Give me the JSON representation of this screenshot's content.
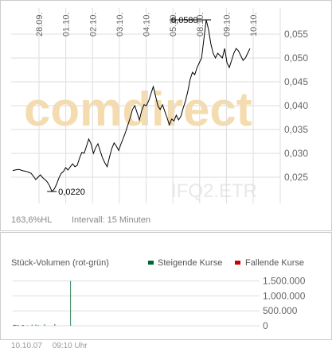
{
  "watermark": {
    "brand": "comdirect",
    "ticker": "IFQ2.ETR"
  },
  "footer_stats": {
    "percent": "163,6",
    "percent_unit": "%HL",
    "interval": "Intervall: 15 Minuten"
  },
  "footer": {
    "date": "10.10.07",
    "time": "09:10 Uhr"
  },
  "colors": {
    "rising": "#006633",
    "falling": "#cc0000",
    "grid": "#dddddd",
    "line": "#000000"
  },
  "chart_data": [
    {
      "type": "line",
      "title": "",
      "x_tick_labels": [
        "28.09.",
        "01.10.",
        "02.10.",
        "03.10.",
        "04.10.",
        "05.10.",
        "08.10.",
        "09.10.",
        "10.10."
      ],
      "y_ticks": [
        "0,025",
        "0,030",
        "0,035",
        "0,040",
        "0,045",
        "0,050",
        "0,055"
      ],
      "ylim": [
        0.0195,
        0.0605
      ],
      "grid": true,
      "annotations": [
        {
          "label": "0,0580",
          "value": 0.058,
          "kind": "high"
        },
        {
          "label": "0,0220",
          "value": 0.022,
          "kind": "low"
        }
      ],
      "series": [
        {
          "values": [
            0.0264,
            0.0265,
            0.0266,
            0.0266,
            0.0264,
            0.0263,
            0.0262,
            0.026,
            0.0258,
            0.0252,
            0.0245,
            0.025,
            0.0255,
            0.0249,
            0.0245,
            0.024,
            0.0232,
            0.022,
            0.0225,
            0.0235,
            0.0248,
            0.0258,
            0.0262,
            0.027,
            0.0265,
            0.0272,
            0.0278,
            0.0272,
            0.0275,
            0.029,
            0.0302,
            0.03,
            0.0315,
            0.033,
            0.032,
            0.03,
            0.0312,
            0.032,
            0.0305,
            0.029,
            0.028,
            0.0272,
            0.0292,
            0.031,
            0.0322,
            0.0315,
            0.0306,
            0.032,
            0.0332,
            0.0345,
            0.036,
            0.0375,
            0.0392,
            0.04,
            0.0385,
            0.037,
            0.039,
            0.0402,
            0.04,
            0.041,
            0.0425,
            0.044,
            0.042,
            0.04,
            0.0392,
            0.0402,
            0.0388,
            0.0375,
            0.036,
            0.0372,
            0.0368,
            0.038,
            0.037,
            0.0378,
            0.0395,
            0.041,
            0.043,
            0.0455,
            0.047,
            0.0465,
            0.048,
            0.049,
            0.05,
            0.054,
            0.058,
            0.056,
            0.053,
            0.051,
            0.05,
            0.051,
            0.0505,
            0.05,
            0.052,
            0.049,
            0.048,
            0.0495,
            0.051,
            0.052,
            0.0515,
            0.0505,
            0.0495,
            0.05,
            0.051,
            0.052
          ]
        }
      ]
    },
    {
      "type": "bar",
      "title": "Stück-Volumen (rot-grün)",
      "legend": [
        "Steigende Kurse",
        "Fallende Kurse"
      ],
      "legend_position": "top-right",
      "y_ticks": [
        "0",
        "500.000",
        "1.000.000",
        "1.500.000"
      ],
      "ylim": [
        0,
        1650000
      ],
      "values": [
        0,
        0,
        0,
        0,
        0,
        0,
        0,
        0,
        0,
        0,
        0,
        0,
        0,
        0,
        0,
        0,
        0,
        0,
        0,
        0,
        0,
        0,
        0,
        0,
        0,
        0,
        0,
        0,
        0,
        0,
        0,
        0,
        0,
        0,
        0,
        0,
        0,
        0,
        0,
        0,
        0,
        0,
        0,
        0,
        0,
        0,
        0,
        0,
        0,
        0,
        0,
        0,
        0,
        0,
        0,
        0,
        0,
        0,
        0,
        0,
        0,
        0,
        0,
        0,
        0,
        0,
        0,
        0,
        0,
        0,
        0,
        0,
        0,
        0,
        0,
        0,
        0,
        0,
        0,
        0,
        0,
        0,
        0,
        0,
        0,
        0,
        0,
        0,
        0,
        0,
        0,
        0,
        0,
        0,
        0,
        0,
        0,
        0,
        0,
        0,
        0,
        0,
        0,
        0,
        0,
        0,
        0,
        0,
        0,
        0,
        0,
        0,
        0,
        0,
        0,
        0,
        0,
        0,
        0,
        0,
        0,
        0,
        0,
        0,
        0,
        0,
        0,
        0,
        0,
        0,
        0,
        0,
        0,
        0,
        0,
        0,
        0,
        0,
        0,
        0,
        0,
        0,
        0,
        0,
        0,
        0,
        0,
        0,
        0,
        0,
        0,
        0,
        0,
        0,
        0,
        0,
        0,
        0,
        0,
        0,
        0,
        0,
        0,
        0,
        0,
        0,
        0,
        0,
        0,
        0,
        0,
        0,
        0,
        0,
        0,
        0,
        0,
        0,
        0,
        0,
        0,
        0,
        0,
        0,
        0,
        0,
        0,
        0,
        0,
        0,
        0,
        0,
        0,
        0,
        0,
        0,
        0,
        0,
        0,
        0,
        0,
        0,
        0,
        0,
        0,
        0,
        0,
        0,
        0,
        0,
        0,
        0,
        0,
        0,
        0,
        0,
        0,
        0,
        0,
        0,
        0,
        0,
        0,
        0,
        0,
        0,
        0,
        0,
        0,
        0,
        0,
        0,
        0,
        0,
        0,
        0,
        0,
        0,
        0,
        0,
        0,
        0,
        0,
        0,
        0,
        0,
        0,
        0,
        0,
        0,
        0,
        0,
        0,
        0,
        0,
        0,
        0,
        0,
        0,
        0,
        0,
        0,
        0,
        0,
        0,
        0,
        0,
        0,
        0,
        0,
        0,
        0,
        0,
        0,
        0,
        0,
        0,
        0,
        0,
        0,
        0,
        0,
        0,
        0,
        0,
        0
      ],
      "series": [
        {
          "name": "Steigende Kurse",
          "values": [
            20000,
            0,
            35000,
            0,
            15000,
            0,
            25000,
            0,
            0,
            0,
            0,
            0,
            30000,
            0,
            0,
            0,
            0,
            0,
            10000,
            0,
            0,
            0,
            0,
            0,
            40000,
            0,
            0,
            0,
            0,
            45000,
            0,
            0,
            20000,
            0,
            0,
            0,
            0,
            0,
            0,
            0,
            50000,
            0,
            0,
            0,
            0,
            0,
            0,
            0,
            0,
            0,
            0,
            0,
            0,
            60000,
            0,
            0,
            0,
            0,
            0,
            0,
            0,
            0,
            0,
            0,
            0,
            0,
            0,
            0,
            0,
            0,
            0,
            0,
            0,
            1500000,
            0,
            0,
            0,
            0,
            0,
            0,
            0,
            0,
            0,
            0,
            0,
            0,
            0,
            0,
            0,
            0,
            0,
            0,
            0,
            0,
            0,
            0,
            0,
            0,
            0,
            0,
            0,
            0,
            0,
            0,
            0,
            0,
            0,
            0,
            0,
            0,
            0,
            0,
            0,
            0,
            0,
            0,
            0,
            0,
            0,
            0,
            0,
            0,
            0,
            0,
            0,
            0,
            0,
            0,
            0,
            0,
            0,
            0,
            0,
            0,
            0,
            0,
            0,
            0,
            0,
            0,
            0,
            0,
            0,
            0,
            0,
            0,
            0,
            0,
            0,
            0,
            0,
            0,
            0,
            0,
            0,
            0,
            0,
            0,
            0,
            0,
            0,
            0,
            0,
            0,
            0,
            0,
            0,
            0,
            0,
            0,
            0,
            0,
            0,
            0,
            0,
            0,
            0,
            0,
            0,
            0,
            0,
            0,
            0,
            0,
            0,
            0,
            0,
            0,
            0,
            0,
            0,
            0,
            0,
            0,
            0,
            0,
            0,
            0,
            0,
            0,
            0,
            0,
            0,
            0,
            0,
            0,
            0,
            0,
            0,
            0,
            0,
            0,
            0,
            0,
            0,
            0,
            0,
            0,
            0,
            0,
            0,
            0,
            0,
            0,
            0,
            0,
            0,
            0,
            0,
            0,
            0,
            0,
            0,
            0,
            0,
            0,
            0,
            0,
            0,
            0,
            0,
            0,
            0,
            0,
            0,
            0,
            0,
            0,
            0,
            0,
            0,
            0,
            0,
            0,
            0,
            0,
            0,
            0,
            0,
            0,
            0,
            0,
            0,
            0,
            0,
            0,
            0,
            0,
            0,
            0,
            0,
            0,
            0,
            0,
            0,
            0,
            0,
            0,
            0,
            0,
            0,
            0,
            0,
            0,
            0,
            0,
            0,
            0,
            0,
            0,
            0,
            0,
            0,
            0,
            0
          ]
        },
        {
          "name": "Fallende Kurse",
          "values": [
            0,
            15000,
            0,
            20000,
            0,
            0,
            0,
            10000,
            0,
            0,
            0,
            0,
            0,
            25000,
            0,
            0,
            0,
            0,
            0,
            0,
            0,
            0,
            0,
            0,
            0,
            0,
            0,
            0,
            0,
            0,
            0,
            0,
            0,
            0,
            0,
            0,
            0,
            0,
            0,
            0,
            0,
            0,
            0,
            0,
            0,
            0,
            0,
            0,
            0,
            0,
            0,
            0,
            0,
            0,
            0,
            0,
            0,
            0,
            0,
            0,
            0,
            0,
            0,
            0,
            0,
            0,
            0,
            0,
            0,
            0,
            0,
            0,
            0,
            0,
            0,
            0,
            0,
            0,
            0,
            0,
            0,
            0,
            0,
            0,
            0,
            0,
            0,
            0,
            0,
            0,
            0,
            0,
            0,
            0,
            0,
            0,
            0,
            0,
            0,
            0,
            0,
            0,
            0,
            0,
            0,
            0,
            0,
            0,
            0,
            0,
            0,
            0,
            0,
            0,
            0,
            0,
            0,
            0,
            0,
            0,
            0,
            0,
            0,
            0,
            0,
            0,
            0,
            0,
            0,
            0,
            0,
            0,
            0,
            0,
            0,
            0,
            0,
            0,
            0,
            0,
            0,
            0,
            0,
            0,
            0,
            0,
            0,
            0,
            0,
            0,
            0,
            0,
            0,
            0,
            0,
            0,
            0,
            0,
            0,
            0,
            0,
            0,
            0,
            0,
            0,
            0,
            0,
            0,
            0,
            0,
            0,
            0,
            0,
            0,
            0,
            0,
            0,
            0,
            0,
            0,
            0,
            0,
            0,
            0,
            0,
            0,
            0,
            0,
            0,
            0,
            0,
            0,
            0,
            0,
            0,
            0,
            0,
            0,
            0,
            0,
            0,
            0,
            0,
            0,
            0,
            0,
            0,
            0,
            0,
            0,
            0,
            0,
            0,
            0,
            0,
            0,
            0,
            0,
            0,
            0,
            0,
            0,
            0,
            0,
            0,
            0,
            0,
            0,
            0,
            0,
            0,
            0,
            0,
            0,
            0,
            0,
            0,
            0,
            0,
            0,
            0,
            0,
            0,
            0,
            0,
            0,
            0,
            0,
            0,
            0,
            0,
            0,
            0,
            0,
            0,
            0,
            0,
            0,
            0,
            0,
            0,
            0,
            0,
            0,
            0,
            0,
            0,
            0,
            0,
            0,
            0,
            0,
            0,
            0,
            0,
            0,
            0,
            0,
            0,
            0,
            0,
            0,
            0,
            0,
            0,
            0,
            0,
            0,
            0,
            0,
            0,
            0,
            0,
            0,
            0,
            0,
            0,
            0,
            0,
            0,
            0,
            0,
            0,
            0,
            0,
            0,
            0,
            0,
            0,
            0,
            0,
            0,
            0
          ]
        }
      ]
    }
  ]
}
